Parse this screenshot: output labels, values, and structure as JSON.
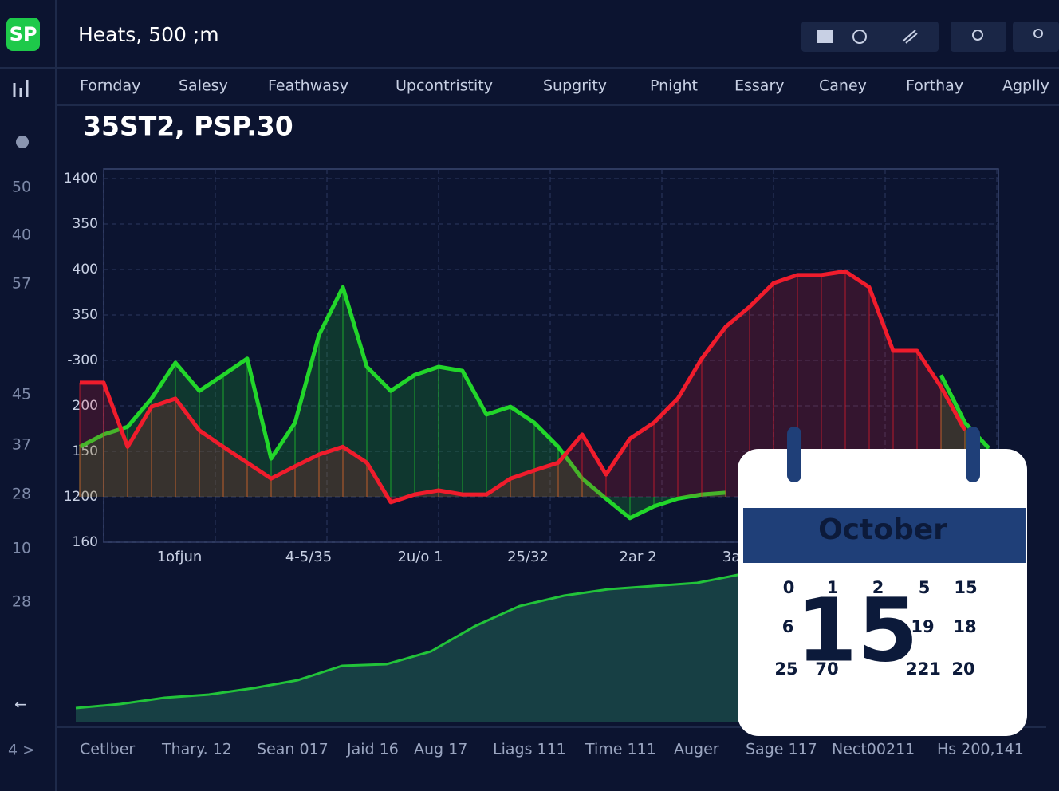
{
  "header": {
    "logo": "SP",
    "title": "Heats, 500 ;m"
  },
  "nav": {
    "items": [
      "Fornday",
      "Salesy",
      "Feathwasy",
      "Upcontristity",
      "Supgrity",
      "Pnight",
      "Essary",
      "Caney",
      "Forthay",
      "Agplly"
    ]
  },
  "sidebar": {
    "labels": [
      "50",
      "40",
      "57",
      "45",
      "37",
      "28",
      "10",
      "28"
    ],
    "bottom": "4 >"
  },
  "chart_data": [
    {
      "type": "line",
      "title": "35ST2, PSP.30",
      "ylim": [
        0,
        8
      ],
      "yticks": [
        {
          "value": 8,
          "label": "1400"
        },
        {
          "value": 7,
          "label": "350"
        },
        {
          "value": 6,
          "label": "400"
        },
        {
          "value": 5,
          "label": "350"
        },
        {
          "value": 4,
          "label": "-300"
        },
        {
          "value": 3,
          "label": "200"
        },
        {
          "value": 2,
          "label": "150"
        },
        {
          "value": 1,
          "label": "1200"
        },
        {
          "value": 0,
          "label": "160"
        }
      ],
      "xtick_labels": [
        "1ofjun",
        "4-5/35",
        "2u/o 1",
        "25/32",
        "2ar 2",
        "3a"
      ],
      "grid": true,
      "series": [
        {
          "color": "#22d62a",
          "values": [
            2.1,
            2.37,
            2.54,
            3.16,
            3.95,
            3.33,
            3.68,
            4.04,
            1.84,
            2.63,
            4.56,
            5.61,
            3.86,
            3.33,
            3.68,
            3.86,
            3.77,
            2.81,
            2.98,
            2.63,
            2.1,
            1.4,
            0.96,
            0.53,
            0.79,
            0.96,
            1.05,
            1.09,
            null,
            null,
            null,
            null,
            null,
            null,
            null,
            null,
            3.68,
            2.63,
            2.07
          ]
        },
        {
          "color": "#f01c2c",
          "values": [
            3.51,
            3.51,
            2.1,
            2.98,
            3.16,
            2.46,
            2.1,
            1.75,
            1.4,
            1.67,
            1.93,
            2.1,
            1.75,
            0.88,
            1.05,
            1.14,
            1.05,
            1.05,
            1.4,
            1.58,
            1.75,
            2.37,
            1.49,
            2.28,
            2.63,
            3.16,
            4.04,
            4.74,
            5.18,
            5.7,
            5.88,
            5.88,
            5.96,
            5.61,
            4.21,
            4.21,
            3.42,
            2.46,
            null
          ]
        }
      ]
    },
    {
      "type": "area",
      "color": "#22c33a",
      "values": [
        17,
        22,
        30,
        34,
        42,
        52,
        70,
        72,
        88,
        120,
        145,
        158,
        166,
        170,
        174,
        185
      ],
      "xtick_labels": [
        "Cetlber",
        "Thary. 12",
        "Sean 017",
        "Jaid 16",
        "Aug 17",
        "Liags 111",
        "Time 111",
        "Auger",
        "Sage 117",
        "Nect00211",
        "Hs 200,141"
      ]
    }
  ],
  "calendar": {
    "month": "October",
    "day": "15",
    "dates": [
      "0",
      "1",
      "2",
      "5",
      "15",
      "6",
      "19",
      "18",
      "25",
      "70",
      "221",
      "20"
    ]
  }
}
